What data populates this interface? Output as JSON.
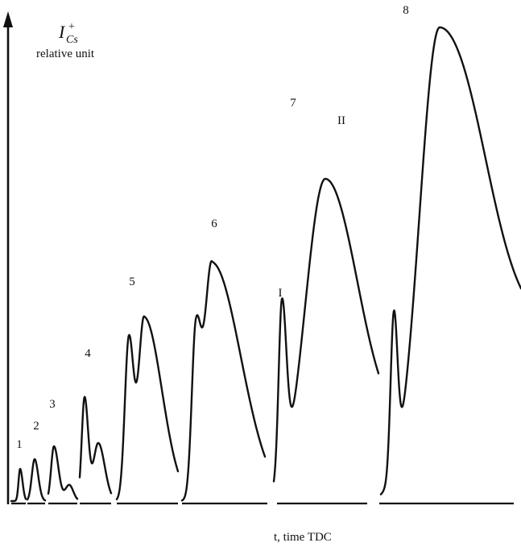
{
  "chart_data": {
    "type": "line",
    "title": "",
    "ylabel_symbol": "I",
    "ylabel_subscript": "Cs",
    "ylabel_superscript": "+",
    "ylabel_unit": "relative unit",
    "xlabel": "t, time TDC",
    "series": [
      {
        "label": "1",
        "peaks": [
          0.1
        ]
      },
      {
        "label": "2",
        "peaks": [
          0.13
        ]
      },
      {
        "label": "3",
        "peaks": [
          0.17,
          0.05
        ]
      },
      {
        "label": "4",
        "peaks": [
          0.32,
          0.18
        ]
      },
      {
        "label": "5",
        "peaks": [
          0.5,
          0.57
        ]
      },
      {
        "label": "6",
        "peaks": [
          0.5,
          0.74
        ]
      },
      {
        "label": "7",
        "peaks": [
          0.53,
          1.0
        ],
        "peak_markers": [
          "I",
          "II"
        ]
      },
      {
        "label": "8",
        "peaks": [
          0.48,
          1.47
        ]
      }
    ]
  }
}
